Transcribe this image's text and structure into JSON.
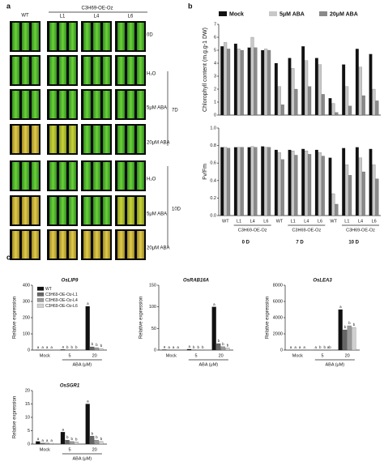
{
  "panel_a": {
    "label": "a",
    "header_wt": "WT",
    "header_group": "C3H69-OE-Oz",
    "lines": [
      "L1",
      "L4",
      "L6"
    ],
    "rows": [
      "0D",
      "H₂O",
      "5μM ABA",
      "20μM ABA",
      "H₂O",
      "5μM ABA",
      "20μM ABA"
    ],
    "periods": [
      "7D",
      "10D"
    ]
  },
  "chart_data": [
    {
      "type": "bar",
      "panel_label": "b",
      "ylabel": "Chlorophyll content (m.g.g-1 DW)",
      "legend": "top",
      "categories": [
        null,
        null,
        null,
        null,
        null,
        null,
        null,
        null,
        null,
        null,
        null,
        null
      ],
      "series": [
        {
          "name": "Mock",
          "color": "#111111",
          "values": [
            5.3,
            5.5,
            5.2,
            5.0,
            4.0,
            4.4,
            5.3,
            4.4,
            1.3,
            3.9,
            5.1,
            4.7
          ]
        },
        {
          "name": "5μM ABA",
          "color": "#c8c8c8",
          "values": [
            5.6,
            5.1,
            6.0,
            5.1,
            2.2,
            3.6,
            4.2,
            3.9,
            0.9,
            2.2,
            3.7,
            2.0
          ]
        },
        {
          "name": "20μM ABA",
          "color": "#8a8a8a",
          "values": [
            5.1,
            5.0,
            5.2,
            5.0,
            0.8,
            2.0,
            2.2,
            1.6,
            0.2,
            0.7,
            1.5,
            1.1
          ]
        }
      ],
      "ylim": [
        0,
        7
      ],
      "yticks": [
        0,
        1,
        2,
        3,
        4,
        5,
        6,
        7
      ]
    },
    {
      "type": "bar",
      "ylabel": "Fv/Fm",
      "categories": [
        "WT",
        "L1",
        "L4",
        "L6",
        "WT",
        "L1",
        "L4",
        "L6",
        "WT",
        "L1",
        "L4",
        "L6"
      ],
      "category_groups": [
        "0 D",
        "7 D",
        "10 D"
      ],
      "group_sublabel": "C3H69-OE-Oz",
      "series": [
        {
          "color": "#111111",
          "values": [
            0.78,
            0.78,
            0.78,
            0.79,
            0.75,
            0.75,
            0.76,
            0.75,
            0.66,
            0.77,
            0.78,
            0.76
          ]
        },
        {
          "color": "#c8c8c8",
          "values": [
            0.78,
            0.78,
            0.79,
            0.78,
            0.72,
            0.74,
            0.74,
            0.72,
            0.25,
            0.58,
            0.66,
            0.58
          ]
        },
        {
          "color": "#8a8a8a",
          "values": [
            0.77,
            0.78,
            0.78,
            0.78,
            0.64,
            0.69,
            0.7,
            0.68,
            0.13,
            0.46,
            0.5,
            0.42
          ]
        }
      ],
      "ylim": [
        0,
        1
      ],
      "yticks": [
        {
          "value": 0,
          "label": "0.0"
        },
        0.2,
        0.4,
        0.6,
        0.8,
        {
          "value": 1,
          "label": "1.0"
        }
      ]
    },
    {
      "type": "bar",
      "panel_label": "c",
      "title": "OsLIP9",
      "ylabel": "Relative expression",
      "xlabel": "ABA (μM)",
      "legend": "upper left",
      "categories": [
        "Mock",
        "5",
        "20"
      ],
      "series": [
        {
          "name": "WT",
          "color": "#111111",
          "values": [
            1,
            3,
            270
          ],
          "letters": [
            "a",
            "a",
            "a"
          ]
        },
        {
          "name": "C3H69-OE-Oz-L1",
          "color": "#666666",
          "values": [
            0.5,
            0.8,
            20
          ],
          "letters": [
            "a",
            "b",
            "b"
          ]
        },
        {
          "name": "C3H69-OE-Oz-L4",
          "color": "#9a9a9a",
          "values": [
            0.6,
            0.6,
            15
          ],
          "letters": [
            "a",
            "b",
            "b"
          ]
        },
        {
          "name": "C3H69-OE-Oz-L6",
          "color": "#d0d0d0",
          "values": [
            0.4,
            0.5,
            10
          ],
          "letters": [
            "a",
            "b",
            "b"
          ]
        }
      ],
      "ylim": [
        0,
        400
      ],
      "yticks": [
        0,
        100,
        200,
        300,
        400
      ]
    },
    {
      "type": "bar",
      "title": "OsRAB16A",
      "ylabel": "Relative expression",
      "xlabel": "ABA (μM)",
      "categories": [
        "Mock",
        "5",
        "20"
      ],
      "series": [
        {
          "color": "#111111",
          "values": [
            1,
            2,
            100
          ],
          "letters": [
            "a",
            "a",
            "a"
          ]
        },
        {
          "color": "#666666",
          "values": [
            0.3,
            0.5,
            15
          ],
          "letters": [
            "a",
            "b",
            "b"
          ]
        },
        {
          "color": "#9a9a9a",
          "values": [
            0.3,
            0.5,
            8
          ],
          "letters": [
            "a",
            "b",
            "b"
          ]
        },
        {
          "color": "#d0d0d0",
          "values": [
            0.3,
            0.4,
            5
          ],
          "letters": [
            "a",
            "b",
            "b"
          ]
        }
      ],
      "ylim": [
        0,
        150
      ],
      "yticks": [
        0,
        50,
        100,
        150
      ]
    },
    {
      "type": "bar",
      "title": "OsLEA3",
      "ylabel": "Relative expression",
      "xlabel": "ABA (μM)",
      "categories": [
        "Mock",
        "5",
        "20"
      ],
      "series": [
        {
          "color": "#111111",
          "values": [
            1,
            5,
            5000
          ],
          "letters": [
            "a",
            "a",
            "a"
          ]
        },
        {
          "color": "#666666",
          "values": [
            0.5,
            2,
            2500
          ],
          "letters": [
            "a",
            "b",
            "b"
          ]
        },
        {
          "color": "#9a9a9a",
          "values": [
            0.5,
            1.5,
            3000
          ],
          "letters": [
            "a",
            "b",
            "b"
          ]
        },
        {
          "color": "#d0d0d0",
          "values": [
            0.4,
            1,
            2800
          ],
          "letters": [
            "a",
            "ab",
            "b"
          ]
        }
      ],
      "ylim": [
        0,
        8000
      ],
      "yticks": [
        0,
        2000,
        4000,
        6000,
        8000
      ]
    },
    {
      "type": "bar",
      "title": "OsSGR1",
      "ylabel": "Relative expression",
      "xlabel": "ABA (μM)",
      "categories": [
        "Mock",
        "5",
        "20"
      ],
      "series": [
        {
          "color": "#111111",
          "values": [
            1,
            4.5,
            15
          ],
          "letters": [
            "a",
            "a",
            "a"
          ]
        },
        {
          "color": "#666666",
          "values": [
            0.4,
            1.5,
            3
          ],
          "letters": [
            "a",
            "b",
            "b"
          ]
        },
        {
          "color": "#9a9a9a",
          "values": [
            0.4,
            1,
            1.5
          ],
          "letters": [
            "a",
            "b",
            "b"
          ]
        },
        {
          "color": "#d0d0d0",
          "values": [
            0.3,
            0.8,
            1
          ],
          "letters": [
            "a",
            "b",
            "b"
          ]
        }
      ],
      "ylim": [
        0,
        20
      ],
      "yticks": [
        0,
        5,
        10,
        15,
        20
      ]
    }
  ]
}
